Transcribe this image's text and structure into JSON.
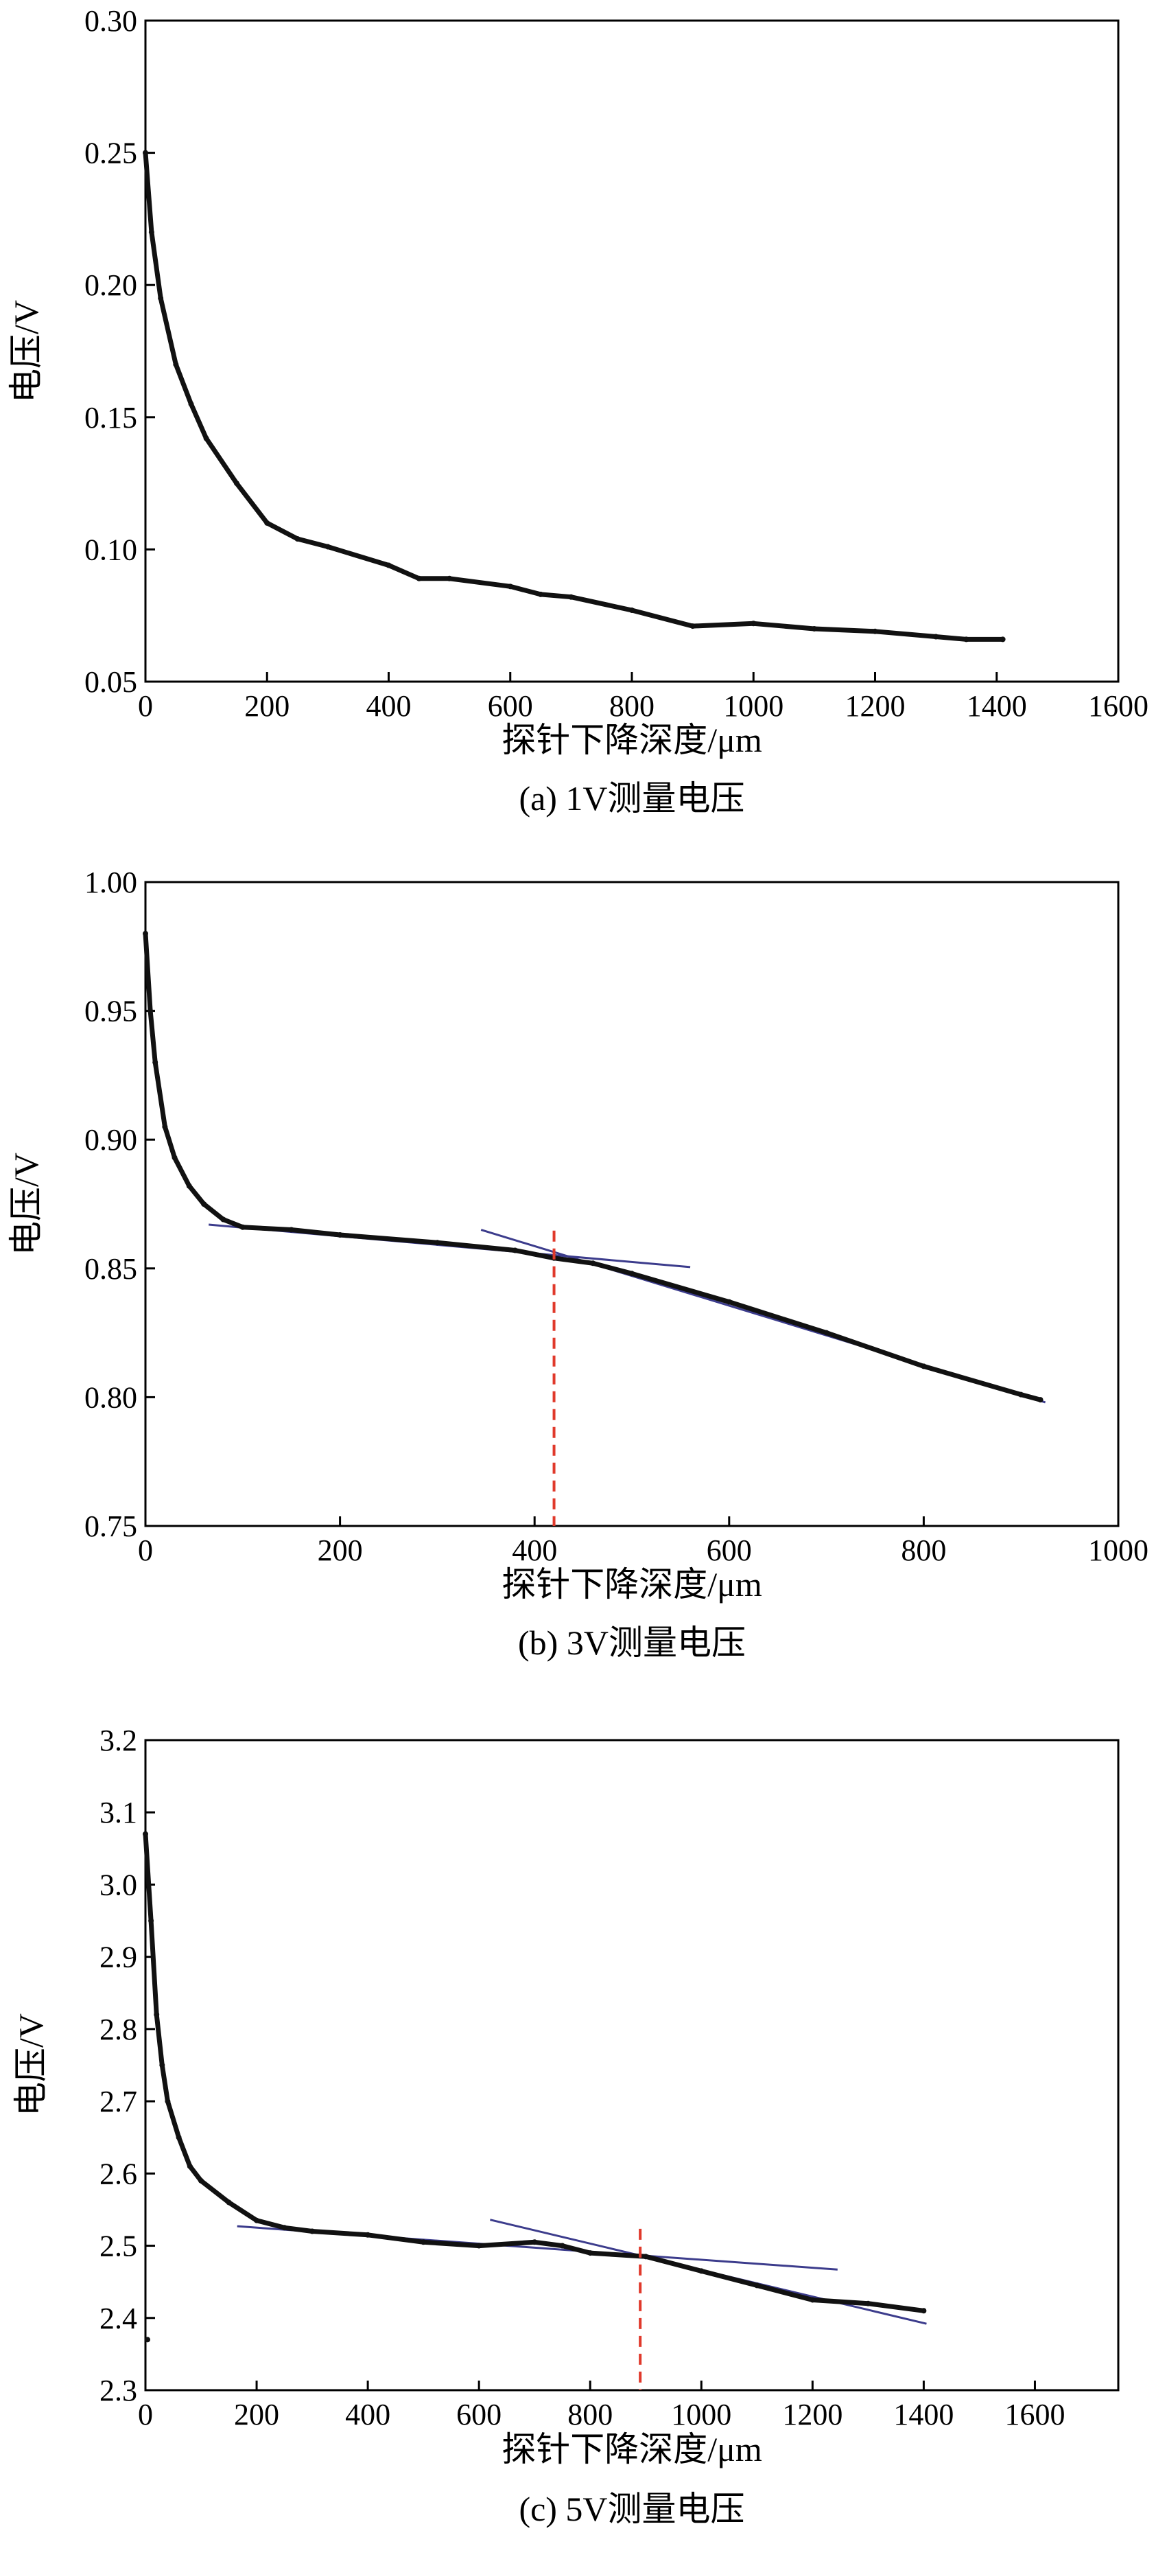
{
  "chart_data": [
    {
      "type": "line",
      "caption": "(a) 1V测量电压",
      "xlabel": "探针下降深度/μm",
      "ylabel": "电压/V",
      "xlim": [
        0,
        1600
      ],
      "ylim": [
        0.05,
        0.3
      ],
      "xticks": [
        "0",
        "200",
        "400",
        "600",
        "800",
        "1000",
        "1200",
        "1400",
        "1600"
      ],
      "yticks": [
        "0.05",
        "0.10",
        "0.15",
        "0.20",
        "0.25",
        "0.30"
      ],
      "grid": false,
      "series": [
        {
          "x": [
            0,
            10,
            25,
            50,
            75,
            100,
            150,
            200,
            250,
            300,
            400,
            450,
            500,
            600,
            650,
            700,
            800,
            900,
            1000,
            1100,
            1200,
            1300,
            1350,
            1410
          ],
          "y": [
            0.25,
            0.22,
            0.195,
            0.17,
            0.155,
            0.142,
            0.125,
            0.11,
            0.104,
            0.101,
            0.094,
            0.089,
            0.089,
            0.086,
            0.083,
            0.082,
            0.077,
            0.071,
            0.072,
            0.07,
            0.069,
            0.067,
            0.066,
            0.066
          ]
        }
      ]
    },
    {
      "type": "line",
      "caption": "(b) 3V测量电压",
      "xlabel": "探针下降深度/μm",
      "ylabel": "电压/V",
      "xlim": [
        0,
        1000
      ],
      "ylim": [
        0.75,
        1.0
      ],
      "xticks": [
        "0",
        "200",
        "400",
        "600",
        "800",
        "1000"
      ],
      "yticks": [
        "0.75",
        "0.80",
        "0.85",
        "0.90",
        "0.95",
        "1.00"
      ],
      "grid": false,
      "series": [
        {
          "x": [
            0,
            5,
            10,
            20,
            30,
            45,
            60,
            80,
            100,
            150,
            200,
            300,
            380,
            420,
            460,
            500,
            600,
            700,
            800,
            900,
            920
          ],
          "y": [
            0.98,
            0.95,
            0.93,
            0.905,
            0.893,
            0.882,
            0.875,
            0.869,
            0.866,
            0.865,
            0.863,
            0.86,
            0.857,
            0.854,
            0.852,
            0.848,
            0.837,
            0.825,
            0.812,
            0.801,
            0.799
          ]
        }
      ],
      "fit_lines": [
        {
          "x": [
            65,
            560
          ],
          "y": [
            0.867,
            0.8505
          ]
        },
        {
          "x": [
            345,
            925
          ],
          "y": [
            0.865,
            0.798
          ]
        }
      ],
      "marker_x": 420
    },
    {
      "type": "line",
      "caption": "(c) 5V测量电压",
      "xlabel": "探针下降深度/μm",
      "ylabel": "电压/V",
      "xlim": [
        0,
        1750
      ],
      "ylim": [
        2.3,
        3.2
      ],
      "xticks": [
        "0",
        "200",
        "400",
        "600",
        "800",
        "1000",
        "1200",
        "1400",
        "1600"
      ],
      "yticks": [
        "2.3",
        "2.4",
        "2.5",
        "2.6",
        "2.7",
        "2.8",
        "2.9",
        "3.0",
        "3.1",
        "3.2"
      ],
      "grid": false,
      "series": [
        {
          "x": [
            0,
            10,
            20,
            30,
            40,
            60,
            80,
            100,
            150,
            200,
            250,
            300,
            400,
            500,
            600,
            700,
            750,
            800,
            900,
            1000,
            1100,
            1200,
            1300,
            1400
          ],
          "y": [
            3.07,
            2.95,
            2.82,
            2.75,
            2.7,
            2.65,
            2.61,
            2.59,
            2.56,
            2.535,
            2.525,
            2.52,
            2.515,
            2.505,
            2.5,
            2.505,
            2.5,
            2.49,
            2.485,
            2.465,
            2.445,
            2.425,
            2.42,
            2.41
          ]
        }
      ],
      "outlier": {
        "x": 0,
        "y": 2.37
      },
      "fit_lines": [
        {
          "x": [
            165,
            1245
          ],
          "y": [
            2.527,
            2.467
          ]
        },
        {
          "x": [
            620,
            1405
          ],
          "y": [
            2.536,
            2.392
          ]
        }
      ],
      "marker_x": 890
    }
  ]
}
